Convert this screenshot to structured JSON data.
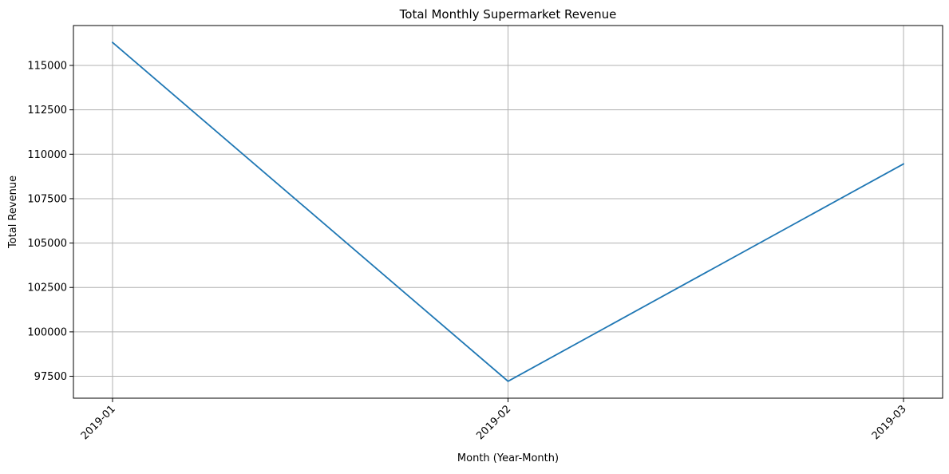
{
  "chart_data": {
    "type": "line",
    "title": "Total Monthly Supermarket Revenue",
    "xlabel": "Month (Year-Month)",
    "ylabel": "Total Revenue",
    "categories": [
      "2019-01",
      "2019-02",
      "2019-03"
    ],
    "series": [
      {
        "values": [
          116292,
          97219,
          109456
        ],
        "color": "#1f77b4"
      }
    ],
    "ylim": [
      96266,
      117246
    ],
    "yticks": [
      97500,
      100000,
      102500,
      105000,
      107500,
      110000,
      112500,
      115000
    ],
    "ytick_labels": [
      "97500",
      "100000",
      "102500",
      "105000",
      "107500",
      "110000",
      "112500",
      "115000"
    ],
    "xtick_rotation": 45,
    "grid": true,
    "legend": false
  }
}
